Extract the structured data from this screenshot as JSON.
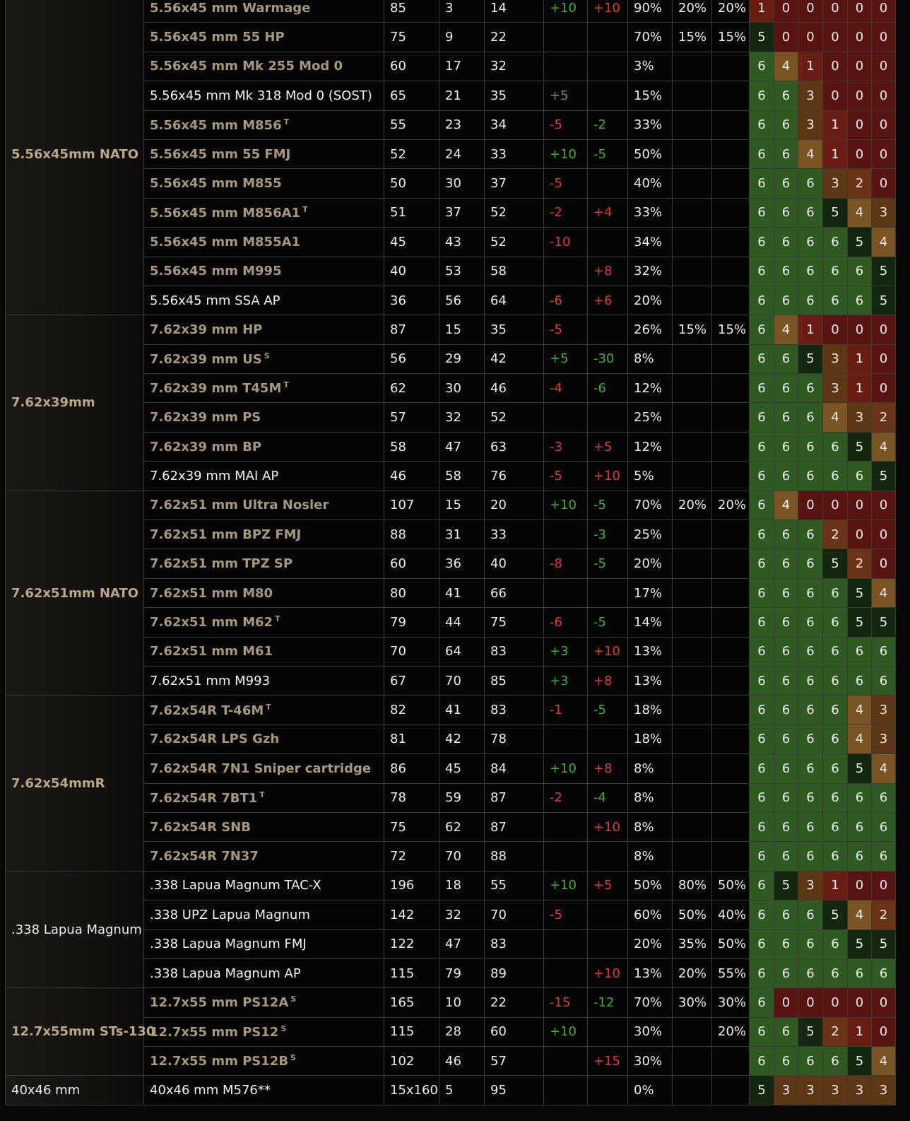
{
  "colors": {
    "eff_6": "#2f5a22",
    "eff_5": "#13270f",
    "eff_4": "#7a5523",
    "eff_3": "#5e3714",
    "eff_2": "#6b3417",
    "eff_1": "#6a1e13",
    "eff_0": "#571410",
    "positive_modifier": "#3fae3a",
    "negative_modifier": "#e23a2c",
    "caliber_text": "#b8a888",
    "ammo_name_text": "#a69878"
  },
  "groups": [
    {
      "caliber": "5.56x45mm NATO",
      "caliber_white": false,
      "rows": [
        {
          "name": "5.56x45 mm Warmage",
          "sup": "",
          "white": false,
          "dmg": "85",
          "pen": "3",
          "armor_dmg": "14",
          "acc": "+10",
          "recoil": "+10",
          "frag": "90%",
          "lbleed": "20%",
          "hbleed": "20%",
          "eff": [
            "1",
            "0",
            "0",
            "0",
            "0",
            "0"
          ]
        },
        {
          "name": "5.56x45 mm 55 HP",
          "sup": "",
          "white": false,
          "dmg": "75",
          "pen": "9",
          "armor_dmg": "22",
          "acc": "",
          "recoil": "",
          "frag": "70%",
          "lbleed": "15%",
          "hbleed": "15%",
          "eff": [
            "5",
            "0",
            "0",
            "0",
            "0",
            "0"
          ]
        },
        {
          "name": "5.56x45 mm Mk 255 Mod 0",
          "sup": "",
          "white": false,
          "dmg": "60",
          "pen": "17",
          "armor_dmg": "32",
          "acc": "",
          "recoil": "",
          "frag": "3%",
          "lbleed": "",
          "hbleed": "",
          "eff": [
            "6",
            "4",
            "1",
            "0",
            "0",
            "0"
          ]
        },
        {
          "name": "5.56x45 mm Mk 318 Mod 0 (SOST)",
          "sup": "",
          "white": true,
          "dmg": "65",
          "pen": "21",
          "armor_dmg": "35",
          "acc": "+5",
          "recoil": "",
          "frag": "15%",
          "lbleed": "",
          "hbleed": "",
          "eff": [
            "6",
            "6",
            "3",
            "0",
            "0",
            "0"
          ]
        },
        {
          "name": "5.56x45 mm M856",
          "sup": "T",
          "white": false,
          "dmg": "55",
          "pen": "23",
          "armor_dmg": "34",
          "acc": "-5",
          "recoil": "-2",
          "frag": "33%",
          "lbleed": "",
          "hbleed": "",
          "eff": [
            "6",
            "6",
            "3",
            "1",
            "0",
            "0"
          ]
        },
        {
          "name": "5.56x45 mm 55 FMJ",
          "sup": "",
          "white": false,
          "dmg": "52",
          "pen": "24",
          "armor_dmg": "33",
          "acc": "+10",
          "recoil": "-5",
          "frag": "50%",
          "lbleed": "",
          "hbleed": "",
          "eff": [
            "6",
            "6",
            "4",
            "1",
            "0",
            "0"
          ]
        },
        {
          "name": "5.56x45 mm M855",
          "sup": "",
          "white": false,
          "dmg": "50",
          "pen": "30",
          "armor_dmg": "37",
          "acc": "-5",
          "recoil": "",
          "frag": "40%",
          "lbleed": "",
          "hbleed": "",
          "eff": [
            "6",
            "6",
            "6",
            "3",
            "2",
            "0"
          ]
        },
        {
          "name": "5.56x45 mm M856A1",
          "sup": "T",
          "white": false,
          "dmg": "51",
          "pen": "37",
          "armor_dmg": "52",
          "acc": "-2",
          "recoil": "+4",
          "frag": "33%",
          "lbleed": "",
          "hbleed": "",
          "eff": [
            "6",
            "6",
            "6",
            "5",
            "4",
            "3"
          ]
        },
        {
          "name": "5.56x45 mm M855A1",
          "sup": "",
          "white": false,
          "dmg": "45",
          "pen": "43",
          "armor_dmg": "52",
          "acc": "-10",
          "recoil": "",
          "frag": "34%",
          "lbleed": "",
          "hbleed": "",
          "eff": [
            "6",
            "6",
            "6",
            "6",
            "5",
            "4"
          ]
        },
        {
          "name": "5.56x45 mm M995",
          "sup": "",
          "white": false,
          "dmg": "40",
          "pen": "53",
          "armor_dmg": "58",
          "acc": "",
          "recoil": "+8",
          "frag": "32%",
          "lbleed": "",
          "hbleed": "",
          "eff": [
            "6",
            "6",
            "6",
            "6",
            "6",
            "5"
          ]
        },
        {
          "name": "5.56x45 mm SSA AP",
          "sup": "",
          "white": true,
          "dmg": "36",
          "pen": "56",
          "armor_dmg": "64",
          "acc": "-6",
          "recoil": "+6",
          "frag": "20%",
          "lbleed": "",
          "hbleed": "",
          "eff": [
            "6",
            "6",
            "6",
            "6",
            "6",
            "5"
          ]
        }
      ]
    },
    {
      "caliber": "7.62x39mm",
      "caliber_white": false,
      "rows": [
        {
          "name": "7.62x39 mm HP",
          "sup": "",
          "white": false,
          "dmg": "87",
          "pen": "15",
          "armor_dmg": "35",
          "acc": "-5",
          "recoil": "",
          "frag": "26%",
          "lbleed": "15%",
          "hbleed": "15%",
          "eff": [
            "6",
            "4",
            "1",
            "0",
            "0",
            "0"
          ]
        },
        {
          "name": "7.62x39 mm US",
          "sup": "S",
          "white": false,
          "dmg": "56",
          "pen": "29",
          "armor_dmg": "42",
          "acc": "+5",
          "recoil": "-30",
          "frag": "8%",
          "lbleed": "",
          "hbleed": "",
          "eff": [
            "6",
            "6",
            "5",
            "3",
            "1",
            "0"
          ]
        },
        {
          "name": "7.62x39 mm T45M",
          "sup": "T",
          "white": false,
          "dmg": "62",
          "pen": "30",
          "armor_dmg": "46",
          "acc": "-4",
          "recoil": "-6",
          "frag": "12%",
          "lbleed": "",
          "hbleed": "",
          "eff": [
            "6",
            "6",
            "6",
            "3",
            "1",
            "0"
          ]
        },
        {
          "name": "7.62x39 mm PS",
          "sup": "",
          "white": false,
          "dmg": "57",
          "pen": "32",
          "armor_dmg": "52",
          "acc": "",
          "recoil": "",
          "frag": "25%",
          "lbleed": "",
          "hbleed": "",
          "eff": [
            "6",
            "6",
            "6",
            "4",
            "3",
            "2"
          ]
        },
        {
          "name": "7.62x39 mm BP",
          "sup": "",
          "white": false,
          "dmg": "58",
          "pen": "47",
          "armor_dmg": "63",
          "acc": "-3",
          "recoil": "+5",
          "frag": "12%",
          "lbleed": "",
          "hbleed": "",
          "eff": [
            "6",
            "6",
            "6",
            "6",
            "5",
            "4"
          ]
        },
        {
          "name": "7.62x39 mm MAI AP",
          "sup": "",
          "white": true,
          "dmg": "46",
          "pen": "58",
          "armor_dmg": "76",
          "acc": "-5",
          "recoil": "+10",
          "frag": "5%",
          "lbleed": "",
          "hbleed": "",
          "eff": [
            "6",
            "6",
            "6",
            "6",
            "6",
            "5"
          ]
        }
      ]
    },
    {
      "caliber": "7.62x51mm NATO",
      "caliber_white": false,
      "rows": [
        {
          "name": "7.62x51 mm Ultra Nosler",
          "sup": "",
          "white": false,
          "dmg": "107",
          "pen": "15",
          "armor_dmg": "20",
          "acc": "+10",
          "recoil": "-5",
          "frag": "70%",
          "lbleed": "20%",
          "hbleed": "20%",
          "eff": [
            "6",
            "4",
            "0",
            "0",
            "0",
            "0"
          ]
        },
        {
          "name": "7.62x51 mm BPZ FMJ",
          "sup": "",
          "white": false,
          "dmg": "88",
          "pen": "31",
          "armor_dmg": "33",
          "acc": "",
          "recoil": "-3",
          "frag": "25%",
          "lbleed": "",
          "hbleed": "",
          "eff": [
            "6",
            "6",
            "6",
            "2",
            "0",
            "0"
          ]
        },
        {
          "name": "7.62x51 mm TPZ SP",
          "sup": "",
          "white": false,
          "dmg": "60",
          "pen": "36",
          "armor_dmg": "40",
          "acc": "-8",
          "recoil": "-5",
          "frag": "20%",
          "lbleed": "",
          "hbleed": "",
          "eff": [
            "6",
            "6",
            "6",
            "5",
            "2",
            "0"
          ]
        },
        {
          "name": "7.62x51 mm M80",
          "sup": "",
          "white": false,
          "dmg": "80",
          "pen": "41",
          "armor_dmg": "66",
          "acc": "",
          "recoil": "",
          "frag": "17%",
          "lbleed": "",
          "hbleed": "",
          "eff": [
            "6",
            "6",
            "6",
            "6",
            "5",
            "4"
          ]
        },
        {
          "name": "7.62x51 mm M62",
          "sup": "T",
          "white": false,
          "dmg": "79",
          "pen": "44",
          "armor_dmg": "75",
          "acc": "-6",
          "recoil": "-5",
          "frag": "14%",
          "lbleed": "",
          "hbleed": "",
          "eff": [
            "6",
            "6",
            "6",
            "6",
            "5",
            "5"
          ]
        },
        {
          "name": "7.62x51 mm M61",
          "sup": "",
          "white": false,
          "dmg": "70",
          "pen": "64",
          "armor_dmg": "83",
          "acc": "+3",
          "recoil": "+10",
          "frag": "13%",
          "lbleed": "",
          "hbleed": "",
          "eff": [
            "6",
            "6",
            "6",
            "6",
            "6",
            "6"
          ]
        },
        {
          "name": "7.62x51 mm M993",
          "sup": "",
          "white": true,
          "dmg": "67",
          "pen": "70",
          "armor_dmg": "85",
          "acc": "+3",
          "recoil": "+8",
          "frag": "13%",
          "lbleed": "",
          "hbleed": "",
          "eff": [
            "6",
            "6",
            "6",
            "6",
            "6",
            "6"
          ]
        }
      ]
    },
    {
      "caliber": "7.62x54mmR",
      "caliber_white": false,
      "rows": [
        {
          "name": "7.62x54R T-46M",
          "sup": "T",
          "white": false,
          "dmg": "82",
          "pen": "41",
          "armor_dmg": "83",
          "acc": "-1",
          "recoil": "-5",
          "frag": "18%",
          "lbleed": "",
          "hbleed": "",
          "eff": [
            "6",
            "6",
            "6",
            "6",
            "4",
            "3"
          ]
        },
        {
          "name": "7.62x54R LPS Gzh",
          "sup": "",
          "white": false,
          "dmg": "81",
          "pen": "42",
          "armor_dmg": "78",
          "acc": "",
          "recoil": "",
          "frag": "18%",
          "lbleed": "",
          "hbleed": "",
          "eff": [
            "6",
            "6",
            "6",
            "6",
            "4",
            "3"
          ]
        },
        {
          "name": "7.62x54R 7N1 Sniper cartridge",
          "sup": "",
          "white": false,
          "dmg": "86",
          "pen": "45",
          "armor_dmg": "84",
          "acc": "+10",
          "recoil": "+8",
          "frag": "8%",
          "lbleed": "",
          "hbleed": "",
          "eff": [
            "6",
            "6",
            "6",
            "6",
            "5",
            "4"
          ]
        },
        {
          "name": "7.62x54R 7BT1",
          "sup": "T",
          "white": false,
          "dmg": "78",
          "pen": "59",
          "armor_dmg": "87",
          "acc": "-2",
          "recoil": "-4",
          "frag": "8%",
          "lbleed": "",
          "hbleed": "",
          "eff": [
            "6",
            "6",
            "6",
            "6",
            "6",
            "6"
          ]
        },
        {
          "name": "7.62x54R SNB",
          "sup": "",
          "white": false,
          "dmg": "75",
          "pen": "62",
          "armor_dmg": "87",
          "acc": "",
          "recoil": "+10",
          "frag": "8%",
          "lbleed": "",
          "hbleed": "",
          "eff": [
            "6",
            "6",
            "6",
            "6",
            "6",
            "6"
          ]
        },
        {
          "name": "7.62x54R 7N37",
          "sup": "",
          "white": false,
          "dmg": "72",
          "pen": "70",
          "armor_dmg": "88",
          "acc": "",
          "recoil": "",
          "frag": "8%",
          "lbleed": "",
          "hbleed": "",
          "eff": [
            "6",
            "6",
            "6",
            "6",
            "6",
            "6"
          ]
        }
      ]
    },
    {
      "caliber": ".338 Lapua Magnum",
      "caliber_white": true,
      "rows": [
        {
          "name": ".338 Lapua Magnum TAC-X",
          "sup": "",
          "white": true,
          "dmg": "196",
          "pen": "18",
          "armor_dmg": "55",
          "acc": "+10",
          "recoil": "+5",
          "frag": "50%",
          "lbleed": "80%",
          "hbleed": "50%",
          "eff": [
            "6",
            "5",
            "3",
            "1",
            "0",
            "0"
          ]
        },
        {
          "name": ".338 UPZ Lapua Magnum",
          "sup": "",
          "white": true,
          "dmg": "142",
          "pen": "32",
          "armor_dmg": "70",
          "acc": "-5",
          "recoil": "",
          "frag": "60%",
          "lbleed": "50%",
          "hbleed": "40%",
          "eff": [
            "6",
            "6",
            "6",
            "5",
            "4",
            "2"
          ]
        },
        {
          "name": ".338 Lapua Magnum FMJ",
          "sup": "",
          "white": true,
          "dmg": "122",
          "pen": "47",
          "armor_dmg": "83",
          "acc": "",
          "recoil": "",
          "frag": "20%",
          "lbleed": "35%",
          "hbleed": "50%",
          "eff": [
            "6",
            "6",
            "6",
            "6",
            "5",
            "5"
          ]
        },
        {
          "name": ".338 Lapua Magnum AP",
          "sup": "",
          "white": true,
          "dmg": "115",
          "pen": "79",
          "armor_dmg": "89",
          "acc": "",
          "recoil": "+10",
          "frag": "13%",
          "lbleed": "20%",
          "hbleed": "55%",
          "eff": [
            "6",
            "6",
            "6",
            "6",
            "6",
            "6"
          ]
        }
      ]
    },
    {
      "caliber": "12.7x55mm STs-130",
      "caliber_white": false,
      "rows": [
        {
          "name": "12.7x55 mm PS12A",
          "sup": "S",
          "white": false,
          "dmg": "165",
          "pen": "10",
          "armor_dmg": "22",
          "acc": "-15",
          "recoil": "-12",
          "frag": "70%",
          "lbleed": "30%",
          "hbleed": "30%",
          "eff": [
            "6",
            "0",
            "0",
            "0",
            "0",
            "0"
          ]
        },
        {
          "name": "12.7x55 mm PS12",
          "sup": "S",
          "white": false,
          "dmg": "115",
          "pen": "28",
          "armor_dmg": "60",
          "acc": "+10",
          "recoil": "",
          "frag": "30%",
          "lbleed": "",
          "hbleed": "20%",
          "eff": [
            "6",
            "6",
            "5",
            "2",
            "1",
            "0"
          ]
        },
        {
          "name": "12.7x55 mm PS12B",
          "sup": "S",
          "white": false,
          "dmg": "102",
          "pen": "46",
          "armor_dmg": "57",
          "acc": "",
          "recoil": "+15",
          "frag": "30%",
          "lbleed": "",
          "hbleed": "",
          "eff": [
            "6",
            "6",
            "6",
            "6",
            "5",
            "4"
          ]
        }
      ]
    },
    {
      "caliber": "40x46 mm",
      "caliber_white": true,
      "rows": [
        {
          "name": "40x46 mm M576**",
          "sup": "",
          "white": true,
          "dmg": "15x160",
          "pen": "5",
          "armor_dmg": "95",
          "acc": "",
          "recoil": "",
          "frag": "0%",
          "lbleed": "",
          "hbleed": "",
          "eff": [
            "5",
            "3",
            "3",
            "3",
            "3",
            "3"
          ]
        }
      ]
    }
  ]
}
